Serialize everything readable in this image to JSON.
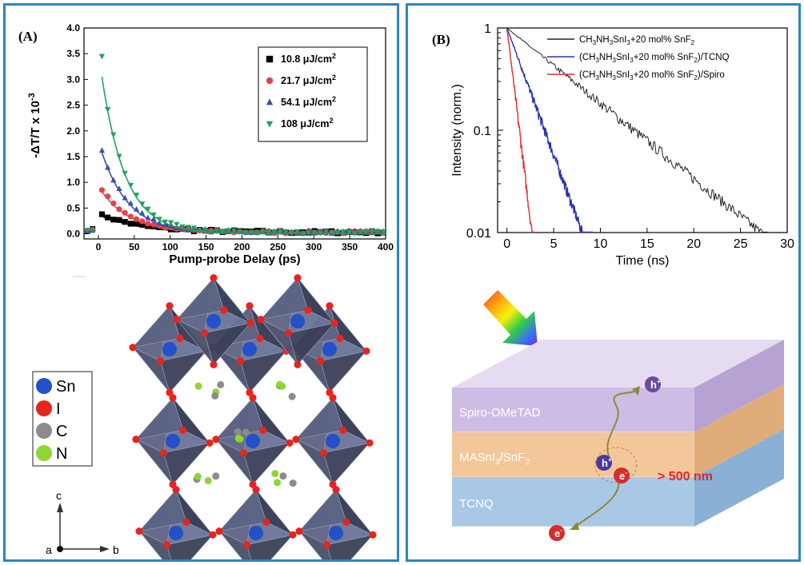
{
  "figure": {
    "panel_a_label": "(A)",
    "panel_b_label": "(B)"
  },
  "chart_data": [
    {
      "id": "A",
      "type": "scatter",
      "title": "",
      "xlabel": "Pump-probe Delay (ps)",
      "ylabel": "-ΔT/T x 10",
      "ylabel_sup": "-3",
      "xlim": [
        -20,
        400
      ],
      "ylim": [
        -0.1,
        4.0
      ],
      "xticks": [
        0,
        50,
        100,
        150,
        200,
        250,
        300,
        350,
        400
      ],
      "yticks": [
        0.0,
        0.5,
        1.0,
        1.5,
        2.0,
        2.5,
        3.0,
        3.5,
        4.0
      ],
      "legend_position": "top-right",
      "legend_unit_sup": "2",
      "series": [
        {
          "name": "10.8 μJ/cm",
          "marker": "square",
          "color": "#000000",
          "A": 0.34,
          "tau": 60
        },
        {
          "name": "21.7 μJ/cm",
          "marker": "circle",
          "color": "#e8404a",
          "A": 0.82,
          "tau": 42
        },
        {
          "name": "54.1 μJ/cm",
          "marker": "triangle-up",
          "color": "#3a4fae",
          "A": 1.58,
          "tau": 38
        },
        {
          "name": "108 μJ/cm",
          "marker": "triangle-down",
          "color": "#1fa35c",
          "A": 3.05,
          "tau": 33
        }
      ],
      "series_peaks": [
        0.38,
        0.85,
        1.62,
        3.45
      ]
    },
    {
      "id": "B",
      "type": "line",
      "title": "",
      "xlabel": "Time (ns)",
      "ylabel": "Intensity (norm.)",
      "xlim": [
        -1,
        30
      ],
      "ylim": [
        0.01,
        1
      ],
      "yscale": "log",
      "xticks": [
        0,
        5,
        10,
        15,
        20,
        25,
        30
      ],
      "yticks": [
        0.01,
        0.1,
        1
      ],
      "ytick_labels": [
        "0.01",
        "0.1",
        "1"
      ],
      "legend_position": "top-right",
      "series": [
        {
          "name": "CH3NH3SnI3+20 mol% SnF2",
          "color": "#222222",
          "t_end": 28,
          "tau": 5.9
        },
        {
          "name": "(CH3NH3SnI3+20 mol% SnF2)/TCNQ",
          "color": "#2b34a8",
          "t_end": 9.2,
          "tau": 1.75
        },
        {
          "name": "(CH3NH3SnI3+20 mol% SnF2)/Spiro",
          "color": "#e02828",
          "t_end": 3.0,
          "tau": 0.58
        }
      ]
    }
  ],
  "crystal": {
    "legend": [
      {
        "label": "Sn",
        "color": "#2450c8"
      },
      {
        "label": "I",
        "color": "#e8241e"
      },
      {
        "label": "C",
        "color": "#8c8c8c"
      },
      {
        "label": "N",
        "color": "#8ed631"
      }
    ],
    "axes": {
      "c": "c",
      "a": "a",
      "b": "b"
    }
  },
  "device": {
    "layers": [
      {
        "label": "Spiro-OMeTAD",
        "color": "#cdbde4"
      },
      {
        "label": "MASnI",
        "sub": "3",
        "suffix": "/SnF",
        "sub2": "2",
        "color": "#f3c79a"
      },
      {
        "label": "TCNQ",
        "color": "#a9c8e6"
      }
    ],
    "annotation": "> 500 nm",
    "hole": "h",
    "electron": "e",
    "charge_plus": "+",
    "charge_minus": "-"
  }
}
